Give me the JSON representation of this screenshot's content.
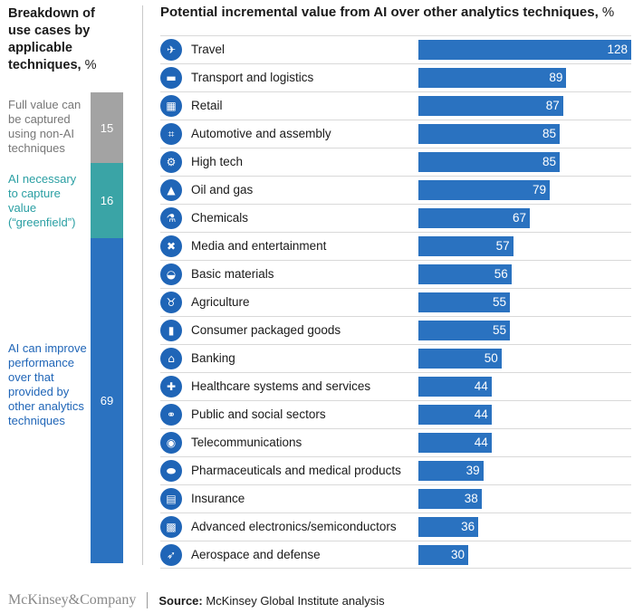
{
  "left_panel": {
    "title": "Breakdown of use cases by applicable techniques,",
    "unit": "%",
    "segments": [
      {
        "label": "Full value can be captured using non-AI techniques",
        "value": 15,
        "color": "#a3a3a3",
        "label_color": "#777777"
      },
      {
        "label": "AI necessary to capture value (“greenfield”)",
        "value": 16,
        "color": "#3aa4a6",
        "label_color": "#2a9fa3"
      },
      {
        "label": "AI can improve performance over that provided by other analytics techniques",
        "value": 69,
        "color": "#2b72c0",
        "label_color": "#1f65b7"
      }
    ]
  },
  "right_panel": {
    "title": "Potential incremental value from AI over other analytics techniques,",
    "unit": "%"
  },
  "chart_data": {
    "type": "bar",
    "orientation": "horizontal",
    "categories": [
      "Travel",
      "Transport and logistics",
      "Retail",
      "Automotive and assembly",
      "High tech",
      "Oil and gas",
      "Chemicals",
      "Media and entertainment",
      "Basic materials",
      "Agriculture",
      "Consumer packaged goods",
      "Banking",
      "Healthcare systems and services",
      "Public and social sectors",
      "Telecommunications",
      "Pharmaceuticals and medical products",
      "Insurance",
      "Advanced electronics/semiconductors",
      "Aerospace and defense"
    ],
    "values": [
      128,
      89,
      87,
      85,
      85,
      79,
      67,
      57,
      56,
      55,
      55,
      50,
      44,
      44,
      44,
      39,
      38,
      36,
      30
    ],
    "icons": [
      "airplane-icon",
      "truck-icon",
      "shopping-cart-icon",
      "chassis-icon",
      "robot-arm-icon",
      "oil-pump-icon",
      "flask-icon",
      "director-chair-icon",
      "hard-hat-icon",
      "cow-icon",
      "package-icon",
      "bank-icon",
      "doctor-icon",
      "handshake-icon",
      "antenna-icon",
      "pills-icon",
      "document-icon",
      "chip-icon",
      "rocket-icon"
    ],
    "bar_color": "#2a72c0",
    "xlim": [
      0,
      128
    ]
  },
  "footer": {
    "brand": "McKinsey&Company",
    "source_label": "Source:",
    "source_text": "McKinsey Global Institute analysis"
  }
}
